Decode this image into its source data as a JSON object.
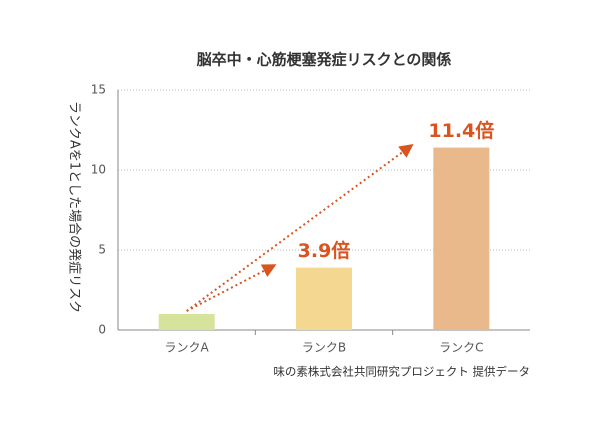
{
  "chart_data": {
    "type": "bar",
    "title": "脳卒中・心筋梗塞発症リスクとの関係",
    "y_label": "ランクAを1とした場合の発症リスク",
    "source": "味の素株式会社共同研究プロジェクト 提供データ",
    "categories": [
      "ランクA",
      "ランクB",
      "ランクC"
    ],
    "values": [
      1,
      3.9,
      11.4
    ],
    "value_labels": [
      null,
      "3.9倍",
      "11.4倍"
    ],
    "colors": [
      "#d5e39b",
      "#f4d892",
      "#e9b98c"
    ],
    "ylim": [
      0,
      15
    ],
    "yticks": [
      0,
      5,
      10,
      15
    ],
    "grid": true
  }
}
